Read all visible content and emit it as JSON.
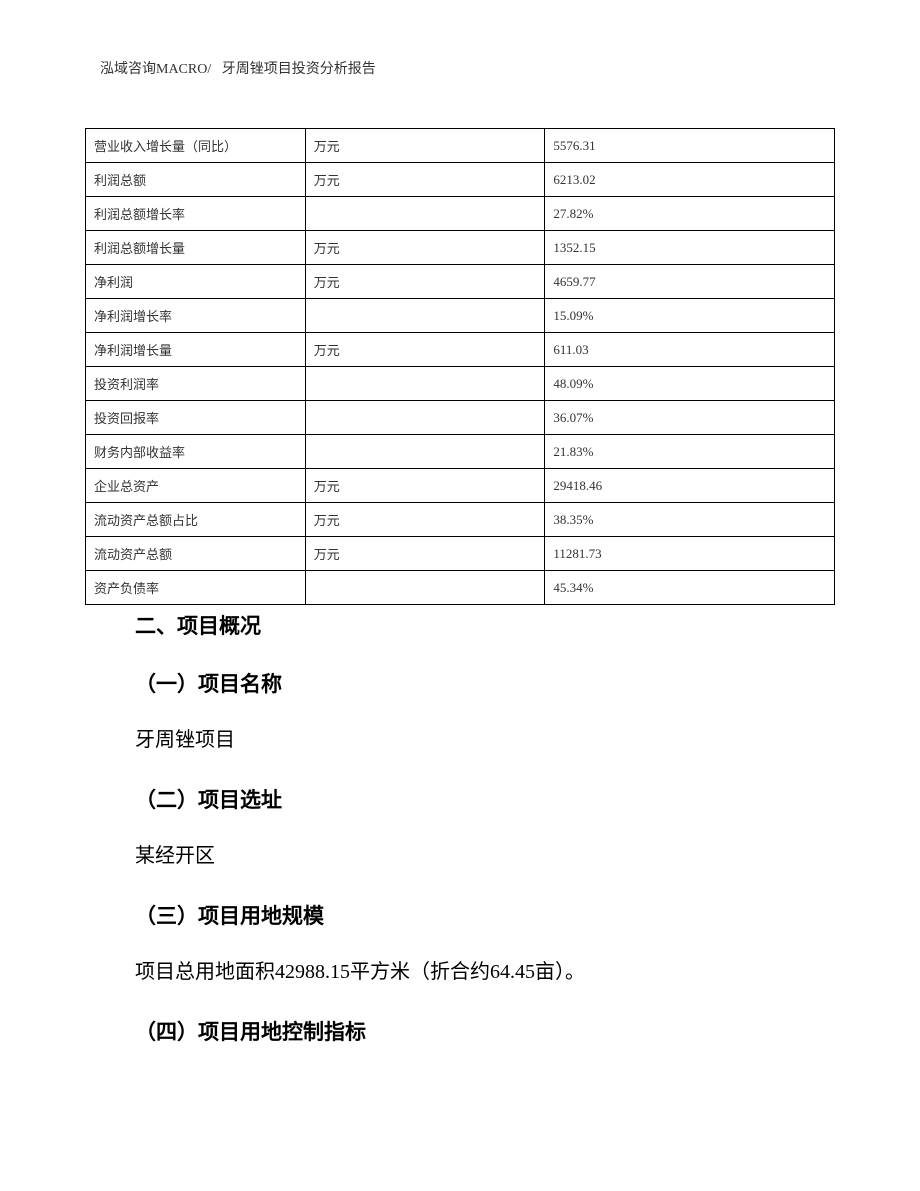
{
  "header": {
    "company": "泓域咨询MACRO/",
    "title": "牙周锉项目投资分析报告"
  },
  "table": {
    "rows": [
      {
        "label": "营业收入增长量（同比）",
        "unit": "万元",
        "value": "5576.31"
      },
      {
        "label": "利润总额",
        "unit": "万元",
        "value": "6213.02"
      },
      {
        "label": "利润总额增长率",
        "unit": "",
        "value": "27.82%"
      },
      {
        "label": "利润总额增长量",
        "unit": "万元",
        "value": "1352.15"
      },
      {
        "label": "净利润",
        "unit": "万元",
        "value": "4659.77"
      },
      {
        "label": "净利润增长率",
        "unit": "",
        "value": "15.09%"
      },
      {
        "label": "净利润增长量",
        "unit": "万元",
        "value": "611.03"
      },
      {
        "label": "投资利润率",
        "unit": "",
        "value": "48.09%"
      },
      {
        "label": "投资回报率",
        "unit": "",
        "value": "36.07%"
      },
      {
        "label": "财务内部收益率",
        "unit": "",
        "value": "21.83%"
      },
      {
        "label": "企业总资产",
        "unit": "万元",
        "value": "29418.46"
      },
      {
        "label": "流动资产总额占比",
        "unit": "万元",
        "value": "38.35%"
      },
      {
        "label": "流动资产总额",
        "unit": "万元",
        "value": "11281.73"
      },
      {
        "label": "资产负债率",
        "unit": "",
        "value": "45.34%"
      }
    ]
  },
  "content": {
    "section2_title": "二、项目概况",
    "sub1_title": "（一）项目名称",
    "sub1_text": "牙周锉项目",
    "sub2_title": "（二）项目选址",
    "sub2_text": "某经开区",
    "sub3_title": "（三）项目用地规模",
    "sub3_text": "项目总用地面积42988.15平方米（折合约64.45亩）。",
    "sub4_title": "（四）项目用地控制指标"
  }
}
